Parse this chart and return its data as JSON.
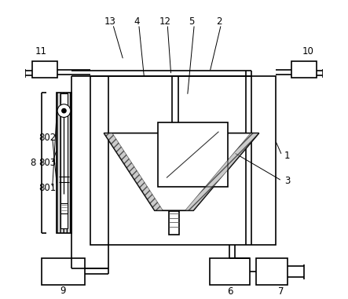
{
  "bg_color": "#ffffff",
  "line_color": "#000000",
  "figsize": [
    4.43,
    3.81
  ],
  "dpi": 100
}
